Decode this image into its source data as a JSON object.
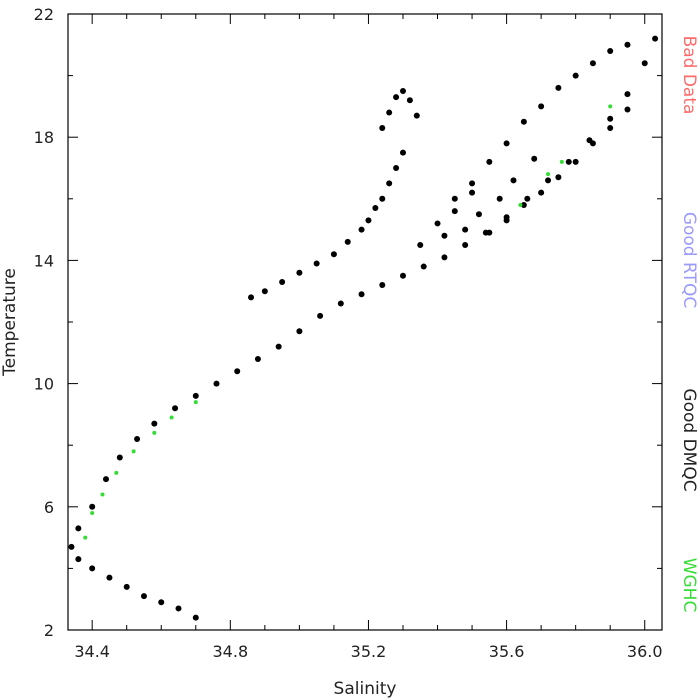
{
  "chart_data": {
    "type": "scatter",
    "title": "",
    "xlabel": "Salinity",
    "ylabel": "Temperature",
    "xlim": [
      34.33,
      36.05
    ],
    "ylim": [
      2,
      22
    ],
    "x_ticks": [
      "34.4",
      "34.8",
      "35.2",
      "35.6",
      "36.0"
    ],
    "y_ticks": [
      "2",
      "6",
      "10",
      "14",
      "18",
      "22"
    ],
    "x_tick_values": [
      34.4,
      34.8,
      35.2,
      35.6,
      36.0
    ],
    "y_tick_values": [
      2,
      6,
      10,
      14,
      18,
      22
    ],
    "grid": false,
    "legend_placement": "right, vertical text",
    "legend": [
      {
        "label": "Bad Data",
        "color": "#ff6b6b"
      },
      {
        "label": "Good RTQC",
        "color": "#9999ff"
      },
      {
        "label": "Good DMQC",
        "color": "#222222"
      },
      {
        "label": "WGHC",
        "color": "#33dd33"
      }
    ],
    "series": [
      {
        "name": "Good DMQC",
        "color": "#000000",
        "x": [
          34.7,
          34.65,
          34.6,
          34.55,
          34.5,
          34.45,
          34.4,
          34.36,
          34.34,
          34.36,
          34.4,
          34.44,
          34.48,
          34.53,
          34.58,
          34.64,
          34.7,
          34.76,
          34.82,
          34.88,
          34.94,
          35.0,
          35.06,
          35.12,
          35.18,
          35.24,
          35.3,
          35.36,
          35.42,
          35.48,
          35.54,
          35.6,
          35.66,
          35.72,
          35.78,
          35.84,
          35.9,
          35.95,
          36.0,
          36.03
        ],
        "y": [
          2.4,
          2.7,
          2.9,
          3.1,
          3.4,
          3.7,
          4.0,
          4.3,
          4.7,
          5.3,
          6.0,
          6.9,
          7.6,
          8.2,
          8.7,
          9.2,
          9.6,
          10.0,
          10.4,
          10.8,
          11.2,
          11.7,
          12.2,
          12.6,
          12.9,
          13.2,
          13.5,
          13.8,
          14.1,
          14.5,
          14.9,
          15.4,
          16.0,
          16.6,
          17.2,
          17.9,
          18.6,
          19.4,
          20.4,
          21.2
        ]
      },
      {
        "name": "Good DMQC",
        "color": "#000000",
        "x": [
          35.24,
          35.26,
          35.28,
          35.3,
          35.32,
          35.34,
          35.3,
          35.28,
          35.26,
          35.24,
          35.22,
          35.2,
          35.18,
          35.14,
          35.1,
          35.05,
          35.0,
          34.95,
          34.9,
          34.86,
          35.45,
          35.5,
          35.55,
          35.6,
          35.65,
          35.7,
          35.75,
          35.8,
          35.85,
          35.9,
          35.95,
          35.55,
          35.6,
          35.65,
          35.7,
          35.75,
          35.8,
          35.85,
          35.9,
          35.95,
          35.4,
          35.45,
          35.5,
          35.35,
          35.42,
          35.48,
          35.52,
          35.58,
          35.62,
          35.68
        ],
        "y": [
          18.3,
          18.8,
          19.3,
          19.5,
          19.2,
          18.7,
          17.5,
          17.0,
          16.5,
          16.0,
          15.7,
          15.3,
          15.0,
          14.6,
          14.2,
          13.9,
          13.6,
          13.3,
          13.0,
          12.8,
          16.0,
          16.5,
          17.2,
          17.8,
          18.5,
          19.0,
          19.6,
          20.0,
          20.4,
          20.8,
          21.0,
          14.9,
          15.3,
          15.8,
          16.2,
          16.7,
          17.2,
          17.8,
          18.3,
          18.9,
          15.2,
          15.6,
          16.2,
          14.5,
          14.8,
          15.0,
          15.5,
          16.0,
          16.6,
          17.3
        ]
      },
      {
        "name": "WGHC",
        "color": "#33dd33",
        "x": [
          34.38,
          34.4,
          34.43,
          34.47,
          34.52,
          34.58,
          34.63,
          34.7,
          35.64,
          35.72,
          35.76,
          35.9
        ],
        "y": [
          5.0,
          5.8,
          6.4,
          7.1,
          7.8,
          8.4,
          8.9,
          9.4,
          15.8,
          16.8,
          17.2,
          19.0
        ]
      }
    ]
  }
}
